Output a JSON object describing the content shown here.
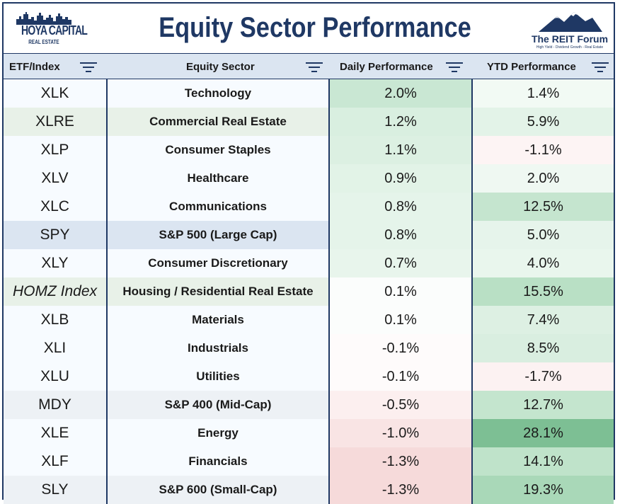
{
  "header": {
    "title": "Equity Sector Performance",
    "left_logo_line1": "HOYA CAPITAL",
    "left_logo_line2": "REAL ESTATE",
    "right_logo_title": "The REIT Forum",
    "right_logo_sub": "High Yield - Dividend Growth - Real Estate"
  },
  "columns": {
    "etf": "ETF/Index",
    "sector": "Equity Sector",
    "daily": "Daily Performance",
    "ytd": "YTD Performance"
  },
  "colors": {
    "navy": "#1f3864",
    "header_band": "#dbe5f1",
    "positive_strong": "#7dbf94",
    "negative_light": "#f6dada"
  },
  "rows": [
    {
      "etf": "XLK",
      "sector": "Technology",
      "daily": "2.0%",
      "ytd": "1.4%",
      "etf_bg": "#f7fbff",
      "sector_bg": "#f7fbff",
      "daily_bg": "#c9e7d3",
      "ytd_bg": "#f2faf4"
    },
    {
      "etf": "XLRE",
      "sector": "Commercial Real Estate",
      "daily": "1.2%",
      "ytd": "5.9%",
      "etf_bg": "#e8f1e8",
      "sector_bg": "#e8f1e8",
      "daily_bg": "#d9efe0",
      "ytd_bg": "#e3f3e8"
    },
    {
      "etf": "XLP",
      "sector": "Consumer Staples",
      "daily": "1.1%",
      "ytd": "-1.1%",
      "etf_bg": "#f7fbff",
      "sector_bg": "#f7fbff",
      "daily_bg": "#dcf0e2",
      "ytd_bg": "#fdf4f4"
    },
    {
      "etf": "XLV",
      "sector": "Healthcare",
      "daily": "0.9%",
      "ytd": "2.0%",
      "etf_bg": "#f7fbff",
      "sector_bg": "#f7fbff",
      "daily_bg": "#e2f3e7",
      "ytd_bg": "#eff8f2"
    },
    {
      "etf": "XLC",
      "sector": "Communications",
      "daily": "0.8%",
      "ytd": "12.5%",
      "etf_bg": "#f7fbff",
      "sector_bg": "#f7fbff",
      "daily_bg": "#e5f4ea",
      "ytd_bg": "#c5e5cf"
    },
    {
      "etf": "SPY",
      "sector": "S&P 500 (Large Cap)",
      "daily": "0.8%",
      "ytd": "5.0%",
      "etf_bg": "#dbe5f1",
      "sector_bg": "#dbe5f1",
      "daily_bg": "#e5f4ea",
      "ytd_bg": "#e6f4eb"
    },
    {
      "etf": "XLY",
      "sector": "Consumer Discretionary",
      "daily": "0.7%",
      "ytd": "4.0%",
      "etf_bg": "#f7fbff",
      "sector_bg": "#f7fbff",
      "daily_bg": "#e8f5ec",
      "ytd_bg": "#e9f6ed"
    },
    {
      "etf": "HOMZ Index",
      "sector": "Housing / Residential Real Estate",
      "daily": "0.1%",
      "ytd": "15.5%",
      "etf_bg": "#e8f1e8",
      "sector_bg": "#e8f1e8",
      "daily_bg": "#fbfdfc",
      "ytd_bg": "#b9e0c5",
      "italic": true
    },
    {
      "etf": "XLB",
      "sector": "Materials",
      "daily": "0.1%",
      "ytd": "7.4%",
      "etf_bg": "#f7fbff",
      "sector_bg": "#f7fbff",
      "daily_bg": "#fbfdfc",
      "ytd_bg": "#ddf0e3"
    },
    {
      "etf": "XLI",
      "sector": "Industrials",
      "daily": "-0.1%",
      "ytd": "8.5%",
      "etf_bg": "#f7fbff",
      "sector_bg": "#f7fbff",
      "daily_bg": "#fefbfb",
      "ytd_bg": "#d9eee0"
    },
    {
      "etf": "XLU",
      "sector": "Utilities",
      "daily": "-0.1%",
      "ytd": "-1.7%",
      "etf_bg": "#f7fbff",
      "sector_bg": "#f7fbff",
      "daily_bg": "#fefbfb",
      "ytd_bg": "#fcf2f2"
    },
    {
      "etf": "MDY",
      "sector": "S&P 400 (Mid-Cap)",
      "daily": "-0.5%",
      "ytd": "12.7%",
      "etf_bg": "#edf1f5",
      "sector_bg": "#edf1f5",
      "daily_bg": "#fcefef",
      "ytd_bg": "#c4e5ce"
    },
    {
      "etf": "XLE",
      "sector": "Energy",
      "daily": "-1.0%",
      "ytd": "28.1%",
      "etf_bg": "#f7fbff",
      "sector_bg": "#f7fbff",
      "daily_bg": "#f9e4e4",
      "ytd_bg": "#7dbf94"
    },
    {
      "etf": "XLF",
      "sector": "Financials",
      "daily": "-1.3%",
      "ytd": "14.1%",
      "etf_bg": "#f7fbff",
      "sector_bg": "#f7fbff",
      "daily_bg": "#f6dada",
      "ytd_bg": "#bfe3ca"
    },
    {
      "etf": "SLY",
      "sector": "S&P 600 (Small-Cap)",
      "daily": "-1.3%",
      "ytd": "19.3%",
      "etf_bg": "#edf1f5",
      "sector_bg": "#edf1f5",
      "daily_bg": "#f6dada",
      "ytd_bg": "#a9d8b8"
    }
  ]
}
